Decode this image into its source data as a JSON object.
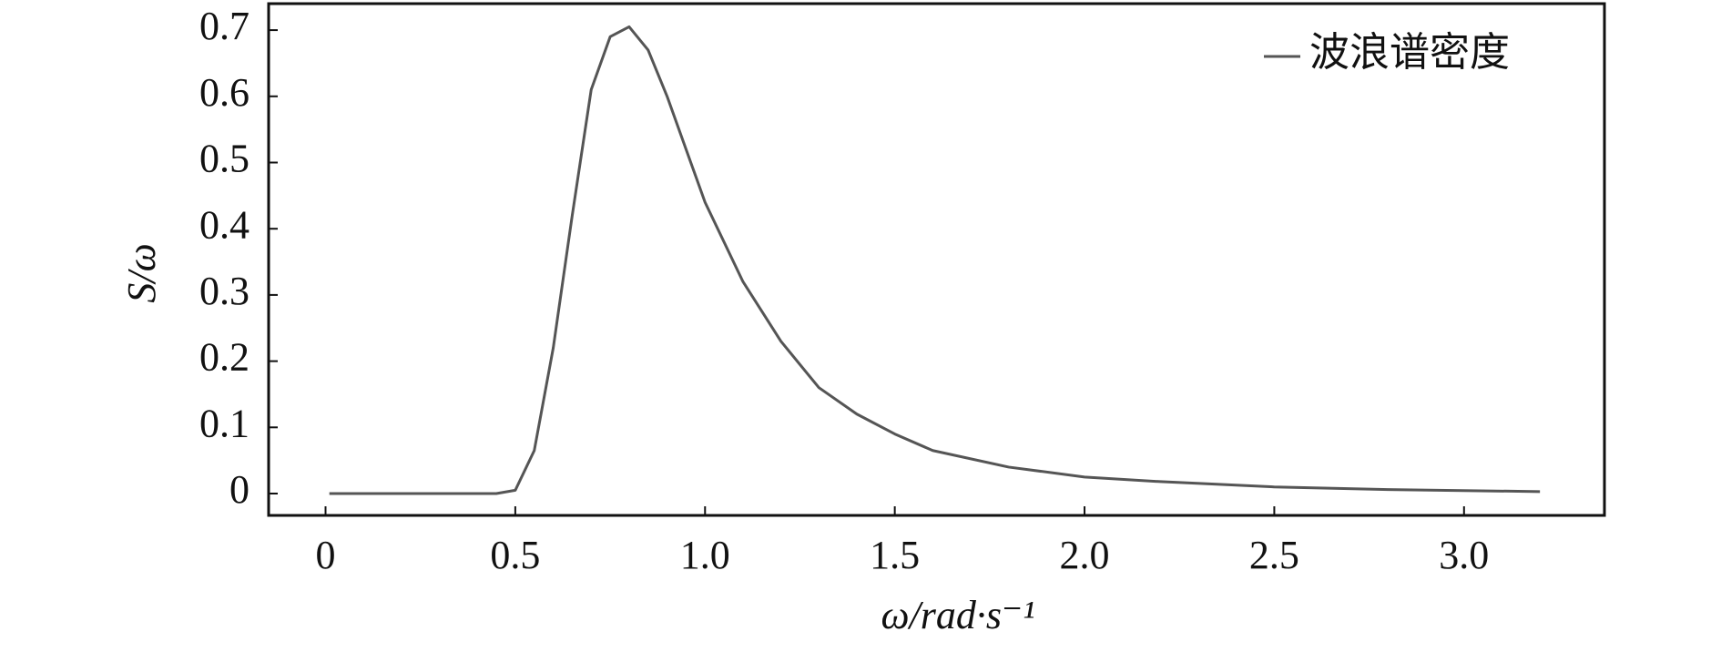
{
  "chart_data": {
    "type": "line",
    "x_label": "ω/rad·s⁻¹",
    "y_label": "S/ω",
    "x": [
      0.01,
      0.45,
      0.5,
      0.55,
      0.6,
      0.65,
      0.7,
      0.75,
      0.8,
      0.85,
      0.9,
      0.95,
      1.0,
      1.1,
      1.2,
      1.3,
      1.4,
      1.5,
      1.6,
      1.8,
      2.0,
      2.2,
      2.5,
      2.8,
      3.2
    ],
    "series": [
      {
        "name": "波浪谱密度",
        "color": "#555555",
        "values": [
          0,
          0,
          0.005,
          0.065,
          0.22,
          0.42,
          0.61,
          0.69,
          0.705,
          0.67,
          0.6,
          0.52,
          0.44,
          0.32,
          0.23,
          0.16,
          0.12,
          0.09,
          0.065,
          0.04,
          0.025,
          0.018,
          0.01,
          0.006,
          0.003
        ]
      }
    ],
    "xlim": [
      -0.15,
      3.37
    ],
    "ylim": [
      -0.033,
      0.74
    ],
    "xticks": [
      0,
      0.5,
      {
        "value": 1,
        "label": "1.0"
      },
      1.5,
      {
        "value": 2,
        "label": "2.0"
      },
      2.5,
      {
        "value": 3,
        "label": "3.0"
      }
    ],
    "yticks": [
      0,
      0.1,
      0.2,
      0.3,
      0.4,
      0.5,
      0.6,
      0.7
    ],
    "legend": "upper right"
  }
}
